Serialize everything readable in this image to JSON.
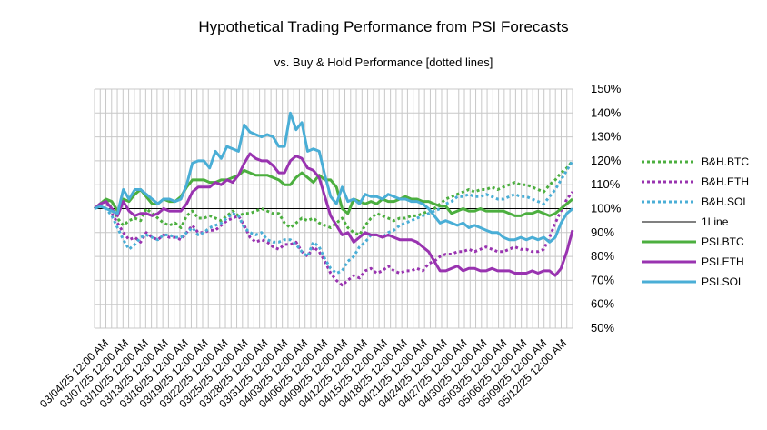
{
  "chart_data": {
    "type": "line",
    "title": "Hypothetical Trading Performance from PSI Forecasts",
    "subtitle": "vs. Buy & Hold Performance [dotted lines]",
    "xlabel": "",
    "ylabel": "",
    "ylim": [
      0.5,
      1.5
    ],
    "y_ticks": [
      "50%",
      "60%",
      "70%",
      "80%",
      "90%",
      "100%",
      "110%",
      "120%",
      "130%",
      "140%",
      "150%"
    ],
    "y_tick_values": [
      0.5,
      0.6,
      0.7,
      0.8,
      0.9,
      1.0,
      1.1,
      1.2,
      1.3,
      1.4,
      1.5
    ],
    "grid": true,
    "legend_position": "right",
    "x_tick_labels": [
      "03/04/25 12:00 AM",
      "03/07/25 12:00 AM",
      "03/10/25 12:00 AM",
      "03/13/25 12:00 AM",
      "03/16/25 12:00 AM",
      "03/19/25 12:00 AM",
      "03/22/25 12:00 AM",
      "03/25/25 12:00 AM",
      "03/28/25 12:00 AM",
      "03/31/25 12:00 AM",
      "04/03/25 12:00 AM",
      "04/06/25 12:00 AM",
      "04/09/25 12:00 AM",
      "04/12/25 12:00 AM",
      "04/15/25 12:00 AM",
      "04/18/25 12:00 AM",
      "04/21/25 12:00 AM",
      "04/24/25 12:00 AM",
      "04/27/25 12:00 AM",
      "04/30/25 12:00 AM",
      "05/03/25 12:00 AM",
      "05/06/25 12:00 AM",
      "05/09/25 12:00 AM",
      "05/12/25 12:00 AM"
    ],
    "series": [
      {
        "name": "B&H.BTC",
        "color": "#4caf3f",
        "style": "dotted",
        "values": [
          1.0,
          1.02,
          1.04,
          1.0,
          0.96,
          0.93,
          0.95,
          0.96,
          0.95,
          1.0,
          0.98,
          0.96,
          0.94,
          0.93,
          0.94,
          0.92,
          0.97,
          0.99,
          0.96,
          0.96,
          0.97,
          0.96,
          0.95,
          0.97,
          0.99,
          0.97,
          0.98,
          0.98,
          0.99,
          1.0,
          0.99,
          0.98,
          0.98,
          0.94,
          0.92,
          0.94,
          0.96,
          0.95,
          0.96,
          0.94,
          0.93,
          0.92,
          0.94,
          0.96,
          0.92,
          0.9,
          0.89,
          0.93,
          0.96,
          0.98,
          0.97,
          0.96,
          0.95,
          0.96,
          0.96,
          0.97,
          0.97,
          0.98,
          0.99,
          1.0,
          1.02,
          1.04,
          1.05,
          1.06,
          1.07,
          1.08,
          1.07,
          1.08,
          1.08,
          1.09,
          1.08,
          1.09,
          1.1,
          1.11,
          1.1,
          1.1,
          1.09,
          1.08,
          1.07,
          1.1,
          1.12,
          1.15,
          1.17,
          1.2
        ]
      },
      {
        "name": "B&H.ETH",
        "color": "#9933b0",
        "style": "dotted",
        "values": [
          1.0,
          1.02,
          1.03,
          0.98,
          0.94,
          0.9,
          0.87,
          0.88,
          0.86,
          0.9,
          0.88,
          0.87,
          0.89,
          0.88,
          0.88,
          0.87,
          0.9,
          0.93,
          0.9,
          0.9,
          0.91,
          0.91,
          0.93,
          0.95,
          0.96,
          0.97,
          0.93,
          0.88,
          0.86,
          0.87,
          0.86,
          0.84,
          0.83,
          0.85,
          0.85,
          0.86,
          0.82,
          0.8,
          0.84,
          0.82,
          0.78,
          0.73,
          0.7,
          0.68,
          0.7,
          0.72,
          0.71,
          0.74,
          0.75,
          0.73,
          0.74,
          0.76,
          0.74,
          0.73,
          0.74,
          0.74,
          0.75,
          0.74,
          0.77,
          0.78,
          0.8,
          0.81,
          0.81,
          0.82,
          0.82,
          0.83,
          0.82,
          0.83,
          0.84,
          0.83,
          0.82,
          0.82,
          0.83,
          0.84,
          0.83,
          0.83,
          0.82,
          0.82,
          0.83,
          0.88,
          0.94,
          0.99,
          1.04,
          1.07
        ]
      },
      {
        "name": "B&H.SOL",
        "color": "#4aaed6",
        "style": "dotted",
        "values": [
          1.0,
          1.01,
          1.0,
          0.97,
          0.92,
          0.87,
          0.83,
          0.85,
          0.88,
          0.89,
          0.88,
          0.87,
          0.89,
          0.89,
          0.88,
          0.88,
          0.9,
          0.92,
          0.89,
          0.9,
          0.92,
          0.93,
          0.94,
          0.96,
          0.98,
          0.97,
          0.92,
          0.9,
          0.89,
          0.9,
          0.87,
          0.86,
          0.86,
          0.87,
          0.87,
          0.85,
          0.82,
          0.8,
          0.86,
          0.84,
          0.79,
          0.75,
          0.73,
          0.74,
          0.78,
          0.8,
          0.84,
          0.86,
          0.89,
          0.89,
          0.88,
          0.9,
          0.91,
          0.93,
          0.94,
          0.95,
          0.96,
          0.97,
          0.98,
          0.99,
          1.0,
          1.02,
          1.03,
          1.05,
          1.05,
          1.06,
          1.05,
          1.05,
          1.06,
          1.05,
          1.04,
          1.04,
          1.05,
          1.06,
          1.05,
          1.05,
          1.04,
          1.03,
          1.02,
          1.05,
          1.08,
          1.12,
          1.16,
          1.2
        ]
      },
      {
        "name": "1Line",
        "color": "#000000",
        "style": "thin",
        "values": [
          1.0,
          1.0
        ]
      },
      {
        "name": "PSI.BTC",
        "color": "#4caf3f",
        "style": "solid",
        "values": [
          1.0,
          1.02,
          1.04,
          1.03,
          0.99,
          1.04,
          1.03,
          1.06,
          1.08,
          1.05,
          1.02,
          1.02,
          1.04,
          1.03,
          1.03,
          1.05,
          1.09,
          1.12,
          1.12,
          1.12,
          1.11,
          1.11,
          1.12,
          1.12,
          1.13,
          1.14,
          1.16,
          1.15,
          1.14,
          1.14,
          1.14,
          1.13,
          1.12,
          1.1,
          1.1,
          1.13,
          1.15,
          1.13,
          1.11,
          1.14,
          1.12,
          1.12,
          1.09,
          1.0,
          0.98,
          1.04,
          1.03,
          1.02,
          1.03,
          1.02,
          1.04,
          1.03,
          1.03,
          1.04,
          1.05,
          1.04,
          1.04,
          1.03,
          1.03,
          1.02,
          1.01,
          1.01,
          0.98,
          0.99,
          1.0,
          0.99,
          0.99,
          1.0,
          0.99,
          0.99,
          0.99,
          0.99,
          0.98,
          0.97,
          0.97,
          0.98,
          0.98,
          0.99,
          0.98,
          0.97,
          0.98,
          1.0,
          1.02,
          1.04
        ]
      },
      {
        "name": "PSI.ETH",
        "color": "#9933b0",
        "style": "solid",
        "values": [
          1.0,
          1.02,
          1.03,
          1.0,
          0.97,
          1.03,
          0.99,
          0.97,
          0.98,
          0.98,
          0.97,
          0.98,
          1.0,
          0.99,
          0.99,
          0.99,
          1.02,
          1.07,
          1.09,
          1.09,
          1.09,
          1.11,
          1.1,
          1.12,
          1.11,
          1.14,
          1.19,
          1.23,
          1.21,
          1.2,
          1.2,
          1.18,
          1.15,
          1.15,
          1.2,
          1.22,
          1.21,
          1.17,
          1.16,
          1.13,
          1.05,
          0.97,
          0.93,
          0.89,
          0.9,
          0.86,
          0.88,
          0.9,
          0.89,
          0.89,
          0.88,
          0.89,
          0.88,
          0.87,
          0.87,
          0.87,
          0.86,
          0.84,
          0.82,
          0.78,
          0.74,
          0.74,
          0.75,
          0.76,
          0.74,
          0.75,
          0.75,
          0.74,
          0.74,
          0.75,
          0.74,
          0.74,
          0.74,
          0.73,
          0.73,
          0.73,
          0.74,
          0.73,
          0.74,
          0.74,
          0.72,
          0.75,
          0.82,
          0.91
        ]
      },
      {
        "name": "PSI.SOL",
        "color": "#4aaed6",
        "style": "solid",
        "values": [
          1.0,
          1.01,
          1.0,
          0.99,
          0.98,
          1.08,
          1.04,
          1.08,
          1.08,
          1.06,
          1.04,
          1.02,
          1.04,
          1.04,
          1.03,
          1.04,
          1.1,
          1.19,
          1.2,
          1.2,
          1.17,
          1.24,
          1.21,
          1.26,
          1.25,
          1.24,
          1.35,
          1.32,
          1.31,
          1.3,
          1.31,
          1.3,
          1.26,
          1.26,
          1.4,
          1.33,
          1.36,
          1.24,
          1.25,
          1.24,
          1.14,
          1.05,
          1.02,
          1.09,
          1.03,
          1.04,
          1.02,
          1.06,
          1.05,
          1.05,
          1.04,
          1.06,
          1.05,
          1.04,
          1.04,
          1.03,
          1.03,
          1.02,
          1.0,
          0.97,
          0.94,
          0.95,
          0.94,
          0.93,
          0.94,
          0.92,
          0.93,
          0.92,
          0.91,
          0.9,
          0.9,
          0.88,
          0.87,
          0.87,
          0.88,
          0.87,
          0.88,
          0.87,
          0.88,
          0.86,
          0.88,
          0.94,
          0.98,
          1.0
        ]
      }
    ]
  }
}
